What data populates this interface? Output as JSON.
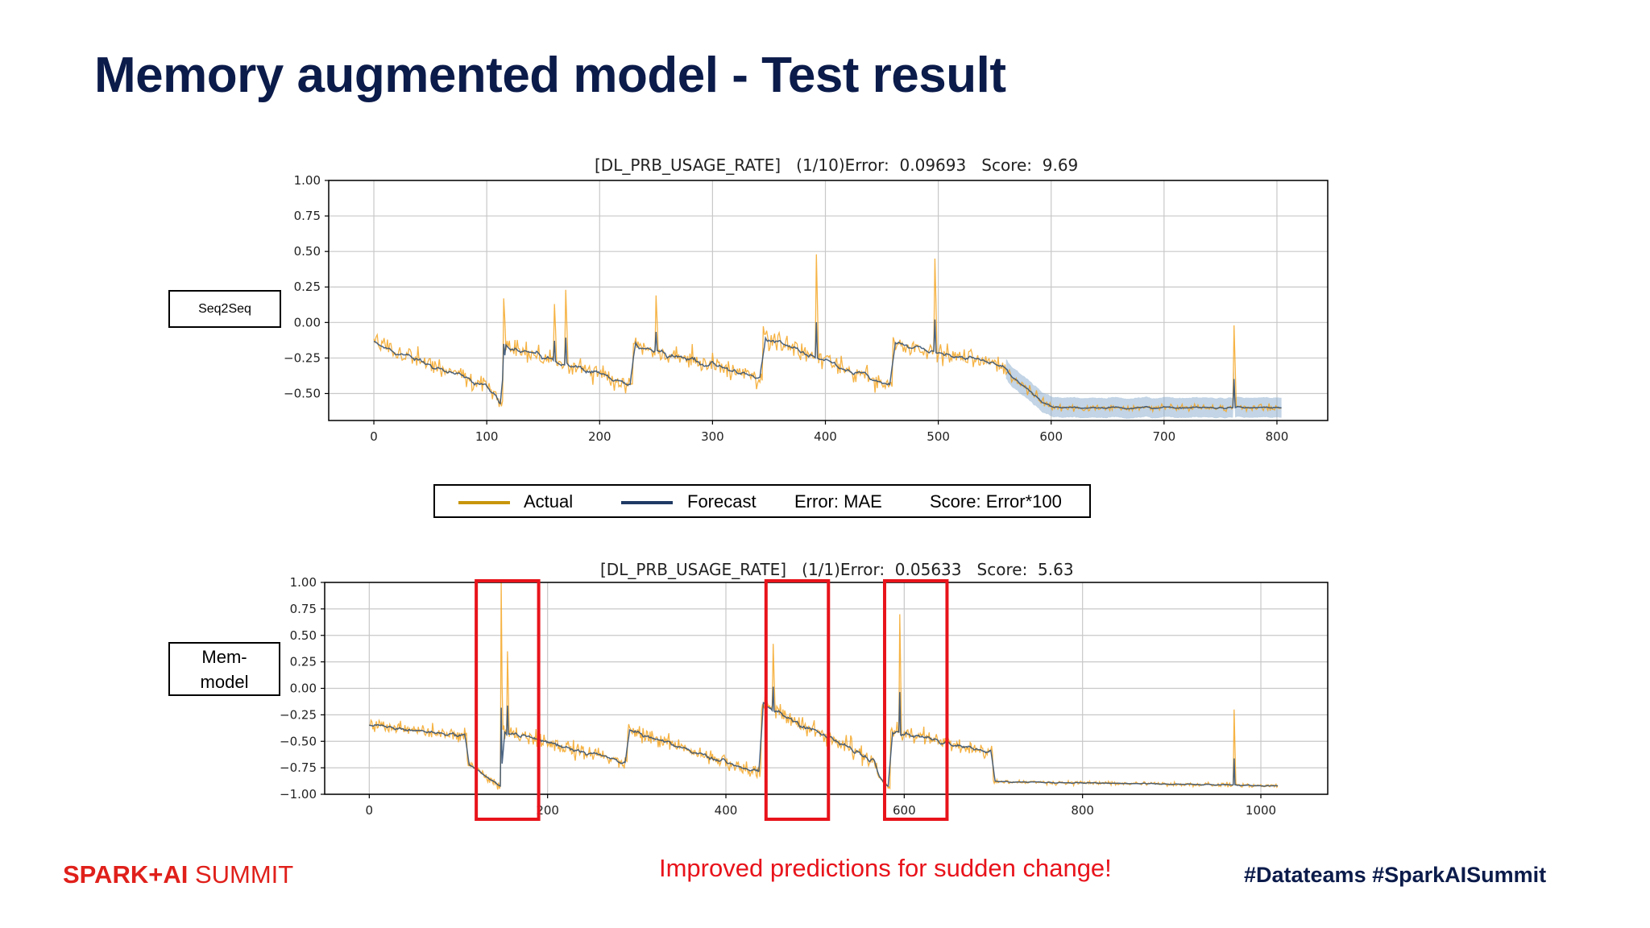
{
  "slide": {
    "title": "Memory augmented model - Test result",
    "note": "Improved predictions for sudden change!",
    "logo_bold": "SPARK+AI",
    "logo_light": "SUMMIT",
    "hashtags": "#Datateams  #SparkAISummit"
  },
  "labels": {
    "top_model": "Seq2Seq",
    "bottom_model_line1": "Mem-",
    "bottom_model_line2": "model"
  },
  "legend": {
    "actual": "Actual",
    "forecast": "Forecast",
    "error": "Error: MAE",
    "score": "Score: Error*100"
  },
  "colors": {
    "actual": "#f5a623",
    "forecast": "#2c4a6e",
    "band": "#8fb1cf",
    "legend_actual": "#c8960c",
    "legend_forecast": "#1f3a64",
    "highlight": "#e8131b",
    "title": "#0b1b4a"
  },
  "chart_data": [
    {
      "type": "line",
      "title": "[DL_PRB_USAGE_RATE]   (1/10)Error:  0.09693   Score:  9.69",
      "xlabel": "",
      "ylabel": "",
      "xlim": [
        -40,
        845
      ],
      "ylim": [
        -0.69,
        1.0
      ],
      "xticks": [
        0,
        100,
        200,
        300,
        400,
        500,
        600,
        700,
        800
      ],
      "yticks": [
        1.0,
        0.75,
        0.5,
        0.25,
        0.0,
        -0.25,
        -0.5
      ],
      "ytick_labels": [
        "1.00",
        "0.75",
        "0.50",
        "0.25",
        "0.00",
        "−0.25",
        "−0.50"
      ],
      "grid": true,
      "series_names": [
        "Actual",
        "Forecast"
      ],
      "n_points": 805,
      "segments": [
        {
          "x_start": 0,
          "x_end": 100,
          "level_start": -0.15,
          "level_end": -0.45,
          "noise": 0.12
        },
        {
          "x_start": 100,
          "x_end": 115,
          "level_start": -0.45,
          "level_end": -0.6,
          "noise": 0.08
        },
        {
          "x_start": 115,
          "x_end": 230,
          "level_start": -0.15,
          "level_end": -0.45,
          "noise": 0.12
        },
        {
          "x_start": 230,
          "x_end": 345,
          "level_start": -0.15,
          "level_end": -0.4,
          "noise": 0.12
        },
        {
          "x_start": 345,
          "x_end": 460,
          "level_start": -0.1,
          "level_end": -0.45,
          "noise": 0.12
        },
        {
          "x_start": 460,
          "x_end": 560,
          "level_start": -0.15,
          "level_end": -0.3,
          "noise": 0.1
        },
        {
          "x_start": 560,
          "x_end": 600,
          "level_start": -0.35,
          "level_end": -0.6,
          "noise": 0.06
        },
        {
          "x_start": 600,
          "x_end": 805,
          "level_start": -0.6,
          "level_end": -0.6,
          "noise": 0.04
        }
      ],
      "spikes": [
        {
          "x": 115,
          "y": 0.17
        },
        {
          "x": 160,
          "y": 0.13
        },
        {
          "x": 170,
          "y": 0.23
        },
        {
          "x": 250,
          "y": 0.19
        },
        {
          "x": 392,
          "y": 0.48
        },
        {
          "x": 497,
          "y": 0.45
        },
        {
          "x": 762,
          "y": -0.02
        }
      ],
      "confidence_band": {
        "x_start": 560,
        "x_end": 805,
        "half_width": 0.07
      }
    },
    {
      "type": "line",
      "title": "[DL_PRB_USAGE_RATE]   (1/1)Error:  0.05633   Score:  5.63",
      "xlabel": "",
      "ylabel": "",
      "xlim": [
        -50,
        1075
      ],
      "ylim": [
        -1.0,
        1.0
      ],
      "xticks": [
        0,
        200,
        400,
        600,
        800,
        1000
      ],
      "yticks": [
        1.0,
        0.75,
        0.5,
        0.25,
        0.0,
        -0.25,
        -0.5,
        -0.75,
        -1.0
      ],
      "ytick_labels": [
        "1.00",
        "0.75",
        "0.50",
        "0.25",
        "0.00",
        "−0.25",
        "−0.50",
        "−0.75",
        "−1.00"
      ],
      "grid": true,
      "series_names": [
        "Actual",
        "Forecast"
      ],
      "n_points": 1020,
      "segments": [
        {
          "x_start": 0,
          "x_end": 110,
          "level_start": -0.35,
          "level_end": -0.45,
          "noise": 0.1
        },
        {
          "x_start": 110,
          "x_end": 150,
          "level_start": -0.7,
          "level_end": -0.95,
          "noise": 0.06
        },
        {
          "x_start": 150,
          "x_end": 290,
          "level_start": -0.4,
          "level_end": -0.7,
          "noise": 0.12
        },
        {
          "x_start": 290,
          "x_end": 440,
          "level_start": -0.4,
          "level_end": -0.8,
          "noise": 0.12
        },
        {
          "x_start": 440,
          "x_end": 570,
          "level_start": -0.15,
          "level_end": -0.7,
          "noise": 0.14
        },
        {
          "x_start": 570,
          "x_end": 585,
          "level_start": -0.8,
          "level_end": -0.95,
          "noise": 0.06
        },
        {
          "x_start": 585,
          "x_end": 700,
          "level_start": -0.4,
          "level_end": -0.6,
          "noise": 0.12
        },
        {
          "x_start": 700,
          "x_end": 1020,
          "level_start": -0.88,
          "level_end": -0.92,
          "noise": 0.03
        }
      ],
      "spikes": [
        {
          "x": 148,
          "y": 1.0
        },
        {
          "x": 155,
          "y": 0.35
        },
        {
          "x": 453,
          "y": 0.42
        },
        {
          "x": 595,
          "y": 0.7
        },
        {
          "x": 970,
          "y": -0.2
        }
      ],
      "highlight_ranges": [
        [
          120,
          190
        ],
        [
          445,
          515
        ],
        [
          578,
          648
        ]
      ]
    }
  ]
}
